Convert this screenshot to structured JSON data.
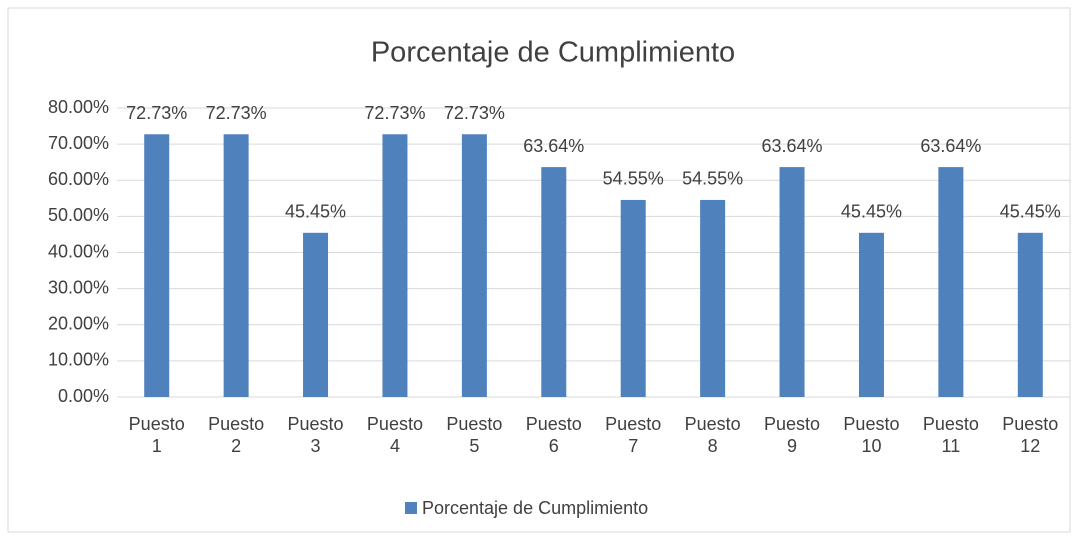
{
  "chart_data": {
    "type": "bar",
    "title": "Porcentaje de Cumplimiento",
    "categories": [
      "Puesto 1",
      "Puesto 2",
      "Puesto 3",
      "Puesto 4",
      "Puesto 5",
      "Puesto 6",
      "Puesto 7",
      "Puesto 8",
      "Puesto 9",
      "Puesto 10",
      "Puesto 11",
      "Puesto 12"
    ],
    "series": [
      {
        "name": "Porcentaje de Cumplimiento",
        "color": "#4f81bd",
        "values": [
          72.73,
          72.73,
          45.45,
          72.73,
          72.73,
          63.64,
          54.55,
          54.55,
          63.64,
          45.45,
          63.64,
          45.45
        ],
        "value_labels": [
          "72.73%",
          "72.73%",
          "45.45%",
          "72.73%",
          "72.73%",
          "63.64%",
          "54.55%",
          "54.55%",
          "63.64%",
          "45.45%",
          "63.64%",
          "45.45%"
        ]
      }
    ],
    "ylim": [
      0,
      80
    ],
    "yticks": [
      {
        "value": 0,
        "label": "0.00%"
      },
      {
        "value": 10,
        "label": "10.00%"
      },
      {
        "value": 20,
        "label": "20.00%"
      },
      {
        "value": 30,
        "label": "30.00%"
      },
      {
        "value": 40,
        "label": "40.00%"
      },
      {
        "value": 50,
        "label": "50.00%"
      },
      {
        "value": 60,
        "label": "60.00%"
      },
      {
        "value": 70,
        "label": "70.00%"
      },
      {
        "value": 80,
        "label": "80.00%"
      }
    ],
    "grid": true,
    "legend": "bottom"
  }
}
